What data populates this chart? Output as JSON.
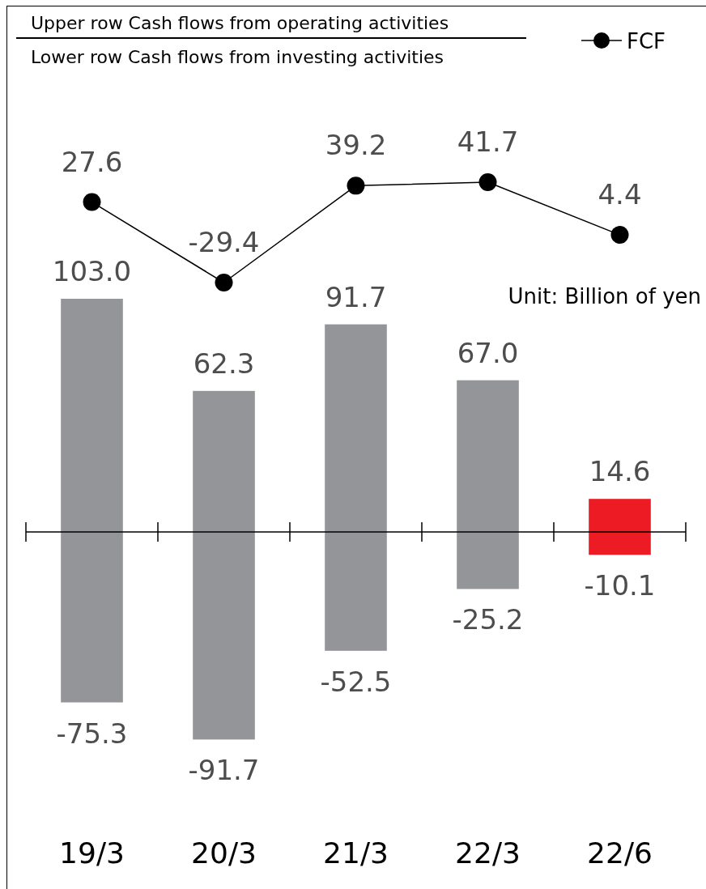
{
  "chart_data": [
    {
      "type": "line",
      "categories": [
        null,
        null,
        null,
        null,
        null
      ],
      "legend": "top right",
      "marker": "circle",
      "series": [
        {
          "name": "FCF",
          "color": "#000000",
          "values": [
            27.6,
            -29.4,
            39.2,
            41.7,
            4.4
          ],
          "value_labels": [
            "27.6",
            "-29.4",
            "39.2",
            "41.7",
            "4.4"
          ]
        }
      ]
    },
    {
      "type": "bar",
      "stacked": true,
      "categories": [
        "19/3",
        "20/3",
        "21/3",
        "22/3",
        "22/6"
      ],
      "series": [
        {
          "colors": [
            "#939598",
            "#939598",
            "#939598",
            "#939598",
            "#ed1c24"
          ],
          "values": [
            103.0,
            62.3,
            91.7,
            67.0,
            14.6
          ],
          "value_labels": [
            "103.0",
            "62.3",
            "91.7",
            "67.0",
            "14.6"
          ]
        },
        {
          "colors": [
            "#939598",
            "#939598",
            "#939598",
            "#939598",
            "#ed1c24"
          ],
          "values": [
            -75.3,
            -91.7,
            -52.5,
            -25.2,
            -10.1
          ],
          "value_labels": [
            "-75.3",
            "-91.7",
            "-52.5",
            "-25.2",
            "-10.1"
          ]
        }
      ],
      "annotations": [
        "Upper row  Cash flows from operating activities",
        "Lower row  Cash flows from investing activities",
        "Unit: Billion of yen"
      ]
    }
  ]
}
